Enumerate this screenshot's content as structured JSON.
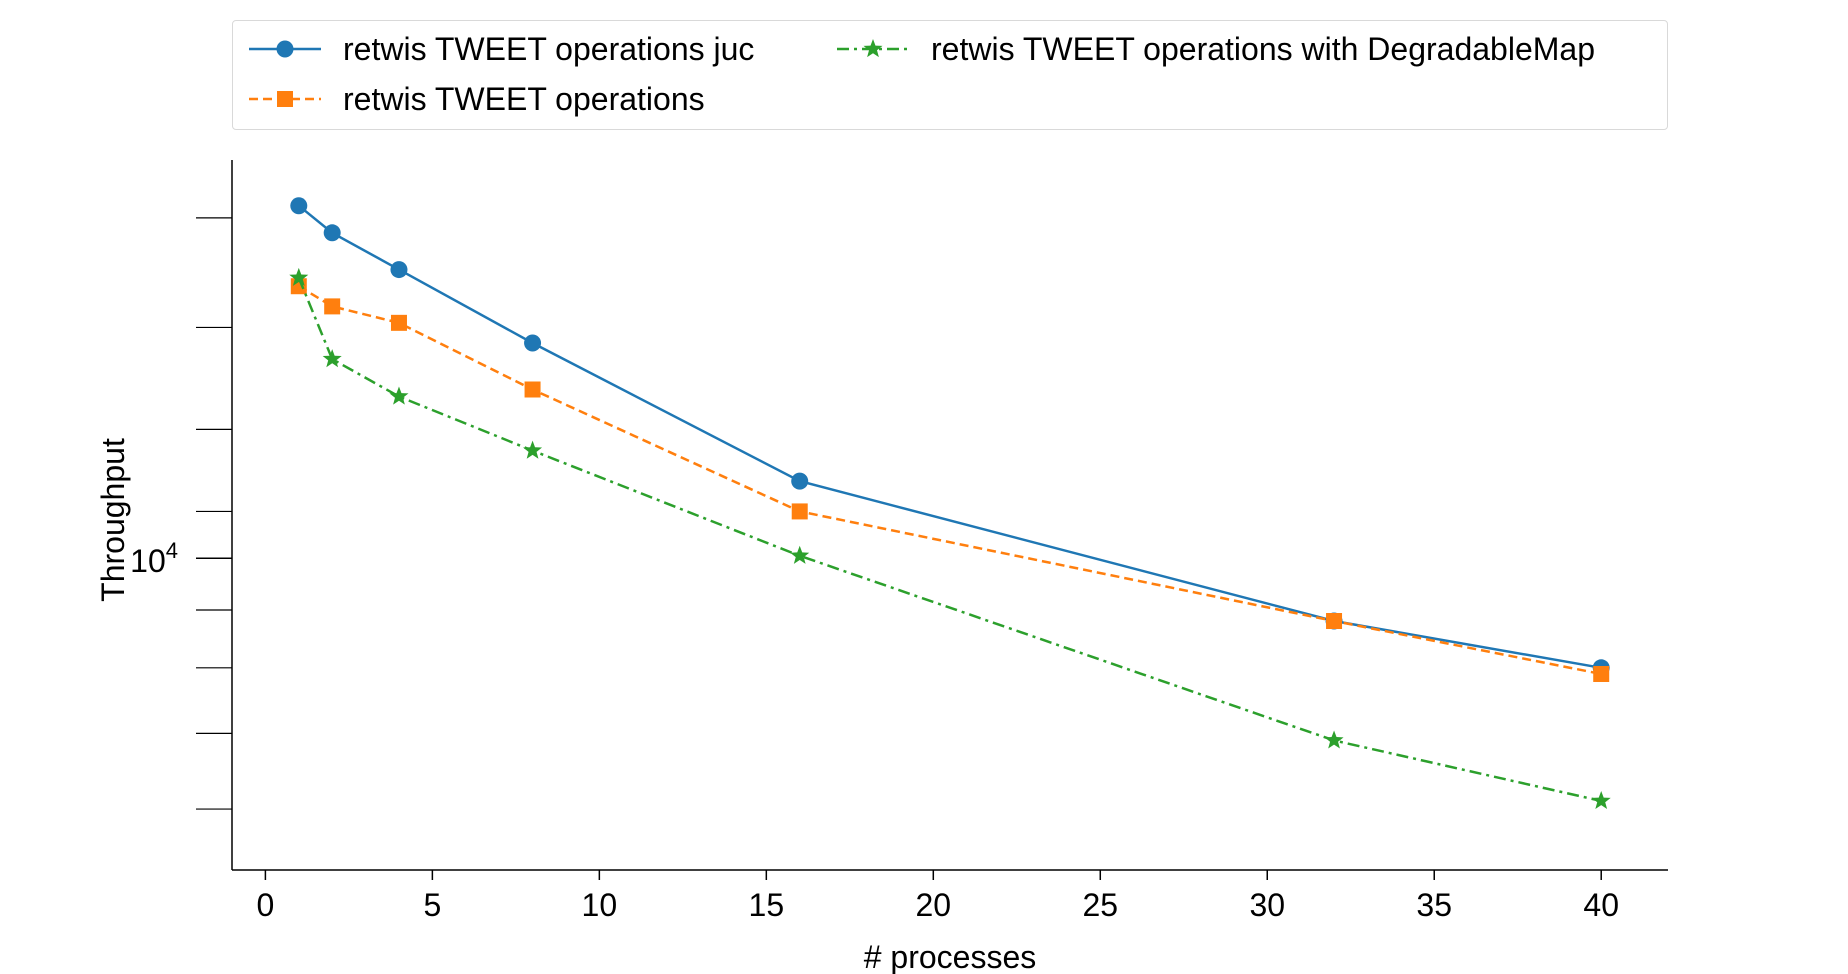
{
  "chart_data": {
    "type": "line",
    "xlabel": "# processes",
    "ylabel": "Throughput",
    "xlim": [
      -1,
      42
    ],
    "ylim": [
      5300,
      22500
    ],
    "y_scale": "log",
    "x_ticks": [
      0,
      5,
      10,
      15,
      20,
      25,
      30,
      35,
      40
    ],
    "y_major_ticks": [
      {
        "value": 10000,
        "base": "10",
        "exp": "4"
      }
    ],
    "y_minor_ticks": [
      6000,
      7000,
      8000,
      9000,
      20000,
      30000
    ],
    "y_minor_ticks_above": [
      11000,
      13000,
      16000,
      20000
    ],
    "y_minor_ticks_below": [
      9000,
      8000,
      7000,
      6000
    ],
    "grid": false,
    "legend_position": "top",
    "x": [
      1,
      2,
      4,
      8,
      16,
      32,
      40
    ],
    "series": [
      {
        "name": "retwis TWEET operations juc",
        "values": [
          20500,
          19400,
          18000,
          15500,
          11700,
          8800,
          8000
        ],
        "color": "#1f77b4",
        "line": "solid",
        "marker": "circle"
      },
      {
        "name": "retwis TWEET operations",
        "values": [
          17400,
          16700,
          16150,
          14100,
          11000,
          8800,
          7900
        ],
        "color": "#ff7f0e",
        "line": "dashed",
        "marker": "square"
      },
      {
        "name": "retwis TWEET operations with DegradableMap",
        "values": [
          17700,
          15000,
          13900,
          12450,
          10050,
          6900,
          6100
        ],
        "color": "#2ca02c",
        "line": "dashdot",
        "marker": "star"
      }
    ]
  }
}
